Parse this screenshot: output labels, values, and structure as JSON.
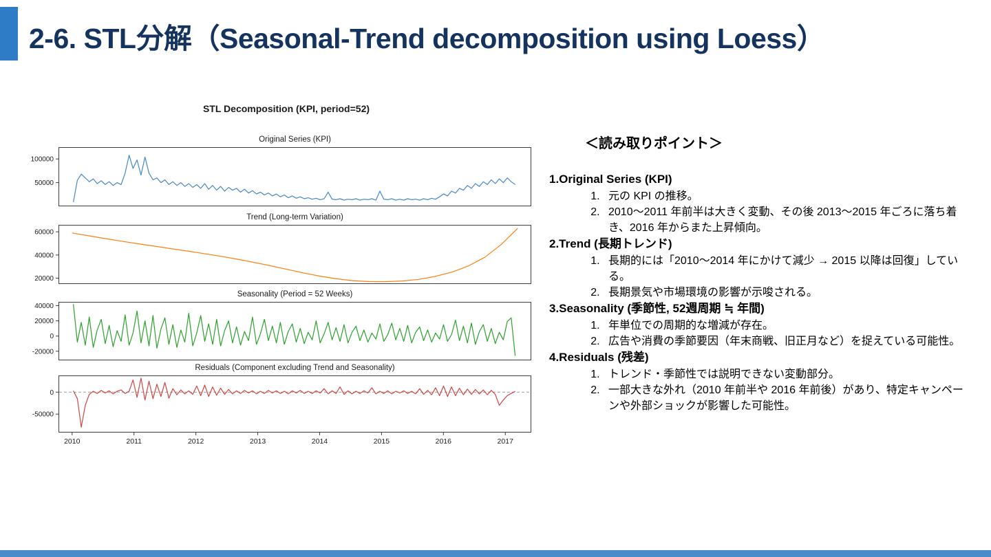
{
  "header": {
    "title": "2-6. STL分解（Seasonal-Trend decomposition using Loess）"
  },
  "colors": {
    "accent_block": "#2f7cc6",
    "header_text": "#15335f",
    "bottom_bar": "#4a8bc9",
    "original_line": "#4487c5",
    "trend_line": "#ff7f0e",
    "seasonal_line": "#2ca02c",
    "residual_line": "#d04543",
    "zero_line": "#999999"
  },
  "chart_data": {
    "type": "line",
    "suptitle": "STL Decomposition (KPI, period=52)",
    "x_min": 2009.78,
    "x_max": 2017.42,
    "x_ticks": [
      {
        "v": 2010,
        "label": "2010"
      },
      {
        "v": 2011,
        "label": "2011"
      },
      {
        "v": 2012,
        "label": "2012"
      },
      {
        "v": 2013,
        "label": "2013"
      },
      {
        "v": 2014,
        "label": "2014"
      },
      {
        "v": 2015,
        "label": "2015"
      },
      {
        "v": 2016,
        "label": "2016"
      },
      {
        "v": 2017,
        "label": "2017"
      }
    ],
    "panels": [
      {
        "id": "original",
        "title": "Original Series (KPI)",
        "color": "#4487c5",
        "ymin": 0,
        "ymax": 125000,
        "yticks": [
          {
            "v": 50000,
            "label": "50000"
          },
          {
            "v": 100000,
            "label": "100000"
          }
        ],
        "zero_line": false,
        "x_start": 2010.02,
        "x_end": 2017.16,
        "values": [
          9000,
          55000,
          68000,
          60000,
          52000,
          58000,
          48000,
          54000,
          46000,
          52000,
          44000,
          50000,
          46000,
          70000,
          108000,
          80000,
          98000,
          66000,
          104000,
          70000,
          56000,
          60000,
          50000,
          56000,
          46000,
          52000,
          44000,
          50000,
          42000,
          48000,
          40000,
          46000,
          38000,
          48000,
          36000,
          44000,
          34000,
          42000,
          32000,
          40000,
          34000,
          38000,
          30000,
          36000,
          28000,
          33000,
          26000,
          30000,
          24000,
          28000,
          22000,
          26000,
          20000,
          24000,
          18000,
          22000,
          17000,
          20000,
          16000,
          18000,
          15000,
          17000,
          14000,
          16000,
          30000,
          15000,
          14000,
          16000,
          13000,
          15000,
          14000,
          16000,
          13000,
          15000,
          14000,
          16000,
          13000,
          32000,
          15000,
          14000,
          16000,
          13000,
          15000,
          13000,
          16000,
          14000,
          15000,
          13000,
          16000,
          14000,
          17000,
          15000,
          20000,
          26000,
          22000,
          32000,
          28000,
          38000,
          34000,
          44000,
          38000,
          48000,
          42000,
          52000,
          46000,
          56000,
          48000,
          58000,
          50000,
          60000,
          52000,
          46000
        ]
      },
      {
        "id": "trend",
        "title": "Trend (Long-term Variation)",
        "color": "#ff7f0e",
        "ymin": 15000,
        "ymax": 66000,
        "yticks": [
          {
            "v": 20000,
            "label": "20000"
          },
          {
            "v": 40000,
            "label": "40000"
          },
          {
            "v": 60000,
            "label": "60000"
          }
        ],
        "zero_line": false,
        "x_start": 2010.0,
        "x_end": 2017.2,
        "values": [
          59000,
          56600,
          54200,
          51900,
          49700,
          47600,
          45500,
          43400,
          41200,
          38900,
          36400,
          33700,
          30800,
          27700,
          24600,
          21800,
          19500,
          17900,
          17100,
          17000,
          17600,
          19000,
          21500,
          25200,
          30500,
          38000,
          49000,
          63000
        ]
      },
      {
        "id": "seasonality",
        "title": "Seasonality (Period = 52 Weeks)",
        "color": "#2ca02c",
        "ymin": -32000,
        "ymax": 45000,
        "yticks": [
          {
            "v": -20000,
            "label": "-20000"
          },
          {
            "v": 0,
            "label": "0"
          },
          {
            "v": 20000,
            "label": "20000"
          },
          {
            "v": 40000,
            "label": "40000"
          }
        ],
        "zero_line": false,
        "x_start": 2010.02,
        "x_end": 2017.16,
        "values": [
          42000,
          -8000,
          18000,
          -12000,
          25000,
          -15000,
          8000,
          22000,
          -10000,
          14000,
          -14000,
          7000,
          -7000,
          28000,
          -12000,
          4000,
          33000,
          -9000,
          20000,
          -13000,
          27000,
          -16000,
          9000,
          24000,
          -11000,
          15000,
          -15000,
          8000,
          -8000,
          30000,
          -13000,
          4000,
          27000,
          -7000,
          16000,
          -11000,
          22000,
          -13000,
          7000,
          20000,
          -9000,
          12000,
          -12000,
          6000,
          -6000,
          25000,
          -11000,
          3000,
          22000,
          -6000,
          13000,
          -9000,
          18000,
          -11000,
          6000,
          16000,
          -8000,
          10000,
          -10000,
          5000,
          -5000,
          20000,
          -9000,
          3000,
          18000,
          -5000,
          11000,
          -7000,
          15000,
          -9000,
          5000,
          13000,
          -6000,
          8000,
          -8000,
          4000,
          -4000,
          16000,
          -7000,
          2000,
          17000,
          -5000,
          10000,
          -7000,
          14000,
          -9000,
          5000,
          12000,
          -6000,
          8000,
          -8000,
          4000,
          -4000,
          15000,
          -7000,
          2000,
          21000,
          -6000,
          13000,
          -9000,
          17000,
          -11000,
          6000,
          15000,
          -7000,
          10000,
          -10000,
          5000,
          -5000,
          19000,
          24000,
          -26000
        ]
      },
      {
        "id": "residuals",
        "title": "Residuals (Component excluding Trend and Seasonality)",
        "color": "#d04543",
        "ymin": -92000,
        "ymax": 38000,
        "yticks": [
          {
            "v": -50000,
            "label": "-50000"
          },
          {
            "v": 0,
            "label": "0"
          }
        ],
        "zero_line": true,
        "x_start": 2010.02,
        "x_end": 2017.16,
        "values": [
          3000,
          -15000,
          -80000,
          -30000,
          -5000,
          2000,
          -3000,
          4000,
          -2000,
          3000,
          -4000,
          2000,
          5000,
          -3000,
          2000,
          28000,
          -12000,
          32000,
          -18000,
          25000,
          -15000,
          18000,
          -10000,
          22000,
          -14000,
          8000,
          -6000,
          5000,
          -4000,
          3000,
          -5000,
          14000,
          -8000,
          16000,
          -10000,
          12000,
          -7000,
          9000,
          -5000,
          6000,
          -4000,
          3000,
          -3000,
          4000,
          -2000,
          3000,
          -4000,
          2000,
          -3000,
          4000,
          -2000,
          3000,
          -3000,
          2000,
          -4000,
          3000,
          -2000,
          4000,
          -3000,
          2000,
          -3000,
          3000,
          -2000,
          8000,
          -4000,
          3000,
          -3000,
          12000,
          -5000,
          3000,
          -4000,
          2000,
          -3000,
          3000,
          -2000,
          10000,
          -4000,
          2000,
          -3000,
          3000,
          -4000,
          2000,
          -2000,
          3000,
          -3000,
          2000,
          -4000,
          8000,
          -5000,
          4000,
          -6000,
          10000,
          -8000,
          14000,
          -10000,
          12000,
          -8000,
          9000,
          -6000,
          7000,
          -5000,
          6000,
          -4000,
          5000,
          -6000,
          4000,
          -5000,
          -30000,
          -18000,
          -8000,
          -3000,
          2000
        ]
      }
    ]
  },
  "notes": {
    "title": "＜読み取りポイント＞",
    "sections": [
      {
        "heading": "1.Original Series (KPI)",
        "items": [
          "元の KPI の推移。",
          "2010〜2011 年前半は大きく変動、その後 2013〜2015 年ごろに落ち着き、2016 年からまた上昇傾向。"
        ]
      },
      {
        "heading": "2.Trend (長期トレンド)",
        "items": [
          "長期的には「2010〜2014 年にかけて減少 → 2015 以降は回復」している。",
          "長期景気や市場環境の影響が示唆される。"
        ]
      },
      {
        "heading": "3.Seasonality (季節性, 52週周期 ≒ 年間)",
        "items": [
          "年単位での周期的な増減が存在。",
          "広告や消費の季節要因（年末商戦、旧正月など）を捉えている可能性。"
        ]
      },
      {
        "heading": "4.Residuals (残差)",
        "items": [
          "トレンド・季節性では説明できない変動部分。",
          "一部大きな外れ（2010 年前半や 2016 年前後）があり、特定キャンペーンや外部ショックが影響した可能性。"
        ]
      }
    ]
  }
}
